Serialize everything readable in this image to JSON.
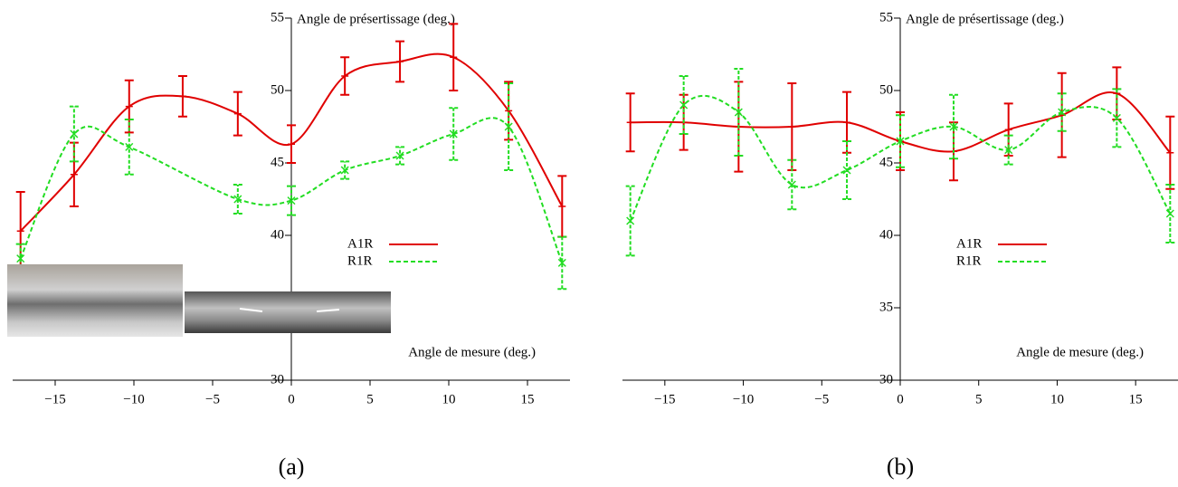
{
  "chart_data": [
    {
      "type": "line",
      "caption": "(a)",
      "ylabel": "Angle de présertissage (deg.)",
      "xlabel": "Angle de mesure (deg.)",
      "x": [
        -17.2,
        -13.8,
        -10.3,
        -6.9,
        -3.4,
        0,
        3.4,
        6.9,
        10.3,
        13.8,
        17.2
      ],
      "xlim": [
        -17.7,
        17.7
      ],
      "xticks": [
        {
          "value": -15,
          "label": "−15"
        },
        {
          "value": -10,
          "label": "−10"
        },
        {
          "value": -5,
          "label": "−5"
        },
        0,
        5,
        10,
        15
      ],
      "ylim": [
        30,
        55
      ],
      "yticks": [
        30,
        35,
        40,
        45,
        50,
        55
      ],
      "series": [
        {
          "name": "A1R",
          "color": "#e00000",
          "dash": false,
          "values": [
            40.3,
            44.2,
            48.9,
            49.6,
            48.4,
            46.3,
            51.0,
            52.0,
            52.3,
            48.6,
            42.0
          ],
          "errors": [
            2.7,
            2.2,
            1.8,
            1.4,
            1.5,
            1.3,
            1.3,
            1.4,
            2.3,
            2.0,
            2.1
          ]
        },
        {
          "name": "R1R",
          "color": "#22dd22",
          "dash": true,
          "values": [
            38.4,
            47.0,
            46.1,
            null,
            42.5,
            42.4,
            44.5,
            45.5,
            47.0,
            47.5,
            38.1
          ],
          "errors": [
            1.0,
            1.9,
            1.9,
            null,
            1.0,
            1.0,
            0.6,
            0.6,
            1.8,
            3.0,
            1.8
          ]
        }
      ]
    },
    {
      "type": "line",
      "caption": "(b)",
      "ylabel": "Angle de présertissage (deg.)",
      "xlabel": "Angle de mesure (deg.)",
      "x": [
        -17.2,
        -13.8,
        -10.3,
        -6.9,
        -3.4,
        0,
        3.4,
        6.9,
        10.3,
        13.8,
        17.2
      ],
      "xlim": [
        -17.7,
        17.7
      ],
      "xticks": [
        {
          "value": -15,
          "label": "−15"
        },
        {
          "value": -10,
          "label": "−10"
        },
        {
          "value": -5,
          "label": "−5"
        },
        0,
        5,
        10,
        15
      ],
      "ylim": [
        30,
        55
      ],
      "yticks": [
        30,
        35,
        40,
        45,
        50,
        55
      ],
      "series": [
        {
          "name": "A1R",
          "color": "#e00000",
          "dash": false,
          "values": [
            47.8,
            47.8,
            47.5,
            47.5,
            47.8,
            46.5,
            45.8,
            47.3,
            48.3,
            49.8,
            45.7
          ],
          "errors": [
            2.0,
            1.9,
            3.1,
            3.0,
            2.1,
            2.0,
            2.0,
            1.8,
            2.9,
            1.8,
            2.5
          ]
        },
        {
          "name": "R1R",
          "color": "#22dd22",
          "dash": true,
          "values": [
            41.0,
            49.0,
            48.5,
            43.5,
            44.5,
            46.5,
            47.5,
            45.9,
            48.5,
            48.1,
            41.5
          ],
          "errors": [
            2.4,
            2.0,
            3.0,
            1.7,
            2.0,
            1.8,
            2.2,
            1.0,
            1.3,
            2.0,
            2.0
          ]
        }
      ]
    }
  ]
}
